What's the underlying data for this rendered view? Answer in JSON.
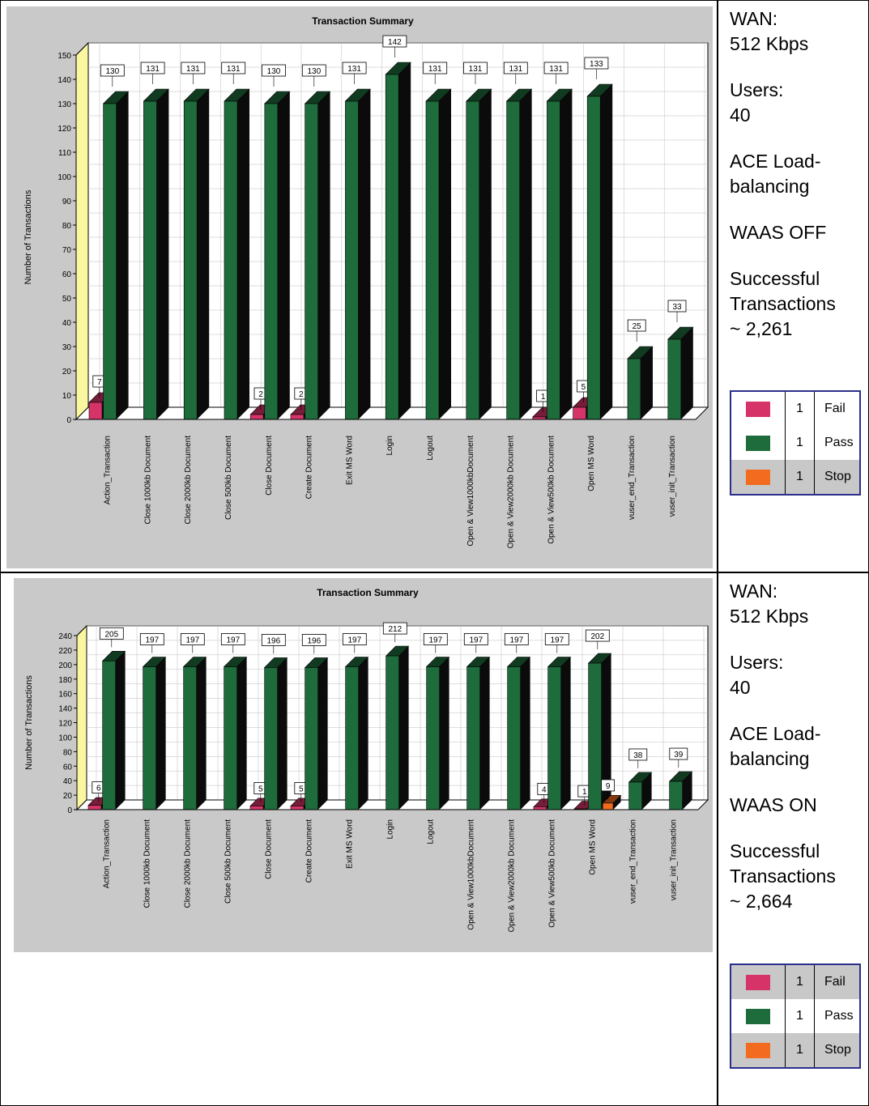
{
  "colors": {
    "fail": "#d63468",
    "pass": "#1e6b3c",
    "stop": "#f26b1f",
    "panel": "#c9c9c9",
    "side_wall": "#fbf7a0"
  },
  "chart_data": [
    {
      "type": "bar",
      "title": "Transaction Summary",
      "ylabel": "Number of Transactions",
      "ylim": [
        0,
        150
      ],
      "yticks": [
        0,
        10,
        20,
        30,
        40,
        50,
        60,
        70,
        80,
        90,
        100,
        110,
        120,
        130,
        140,
        150
      ],
      "categories": [
        "Action_Transaction",
        "Close 1000kb Document",
        "Close 2000kb Document",
        "Close 500kb Document",
        "Close Document",
        "Create Document",
        "Exit MS Word",
        "Login",
        "Logout",
        "Open & View1000kbDocument",
        "Open & View2000kb Document",
        "Open & View500kb Document",
        "Open MS Word",
        "vuser_end_Transaction",
        "vuser_init_Transaction"
      ],
      "series": [
        {
          "key": "fail",
          "values": [
            7,
            null,
            null,
            null,
            2,
            2,
            null,
            null,
            null,
            null,
            null,
            1,
            5,
            null,
            null
          ]
        },
        {
          "key": "pass",
          "values": [
            130,
            131,
            131,
            131,
            130,
            130,
            131,
            142,
            131,
            131,
            131,
            131,
            133,
            25,
            33
          ]
        },
        {
          "key": "stop",
          "values": [
            null,
            null,
            null,
            null,
            null,
            null,
            null,
            null,
            null,
            null,
            null,
            null,
            null,
            null,
            null
          ]
        }
      ]
    },
    {
      "type": "bar",
      "title": "Transaction Summary",
      "ylabel": "Number of Transactions",
      "ylim": [
        0,
        240
      ],
      "yticks": [
        0,
        20,
        40,
        60,
        80,
        100,
        120,
        140,
        160,
        180,
        200,
        220,
        240
      ],
      "categories": [
        "Action_Transaction",
        "Close 1000kb Document",
        "Close 2000kb Document",
        "Close 500kb Document",
        "Close Document",
        "Create Document",
        "Exit MS Word",
        "Login",
        "Logout",
        "Open & View1000kbDocument",
        "Open & View2000kb Document",
        "Open & View500kb Document",
        "Open MS Word",
        "vuser_end_Transaction",
        "vuser_init_Transaction"
      ],
      "series": [
        {
          "key": "fail",
          "values": [
            6,
            null,
            null,
            null,
            5,
            5,
            null,
            null,
            null,
            null,
            null,
            4,
            1,
            null,
            null
          ]
        },
        {
          "key": "pass",
          "values": [
            205,
            197,
            197,
            197,
            196,
            196,
            197,
            212,
            197,
            197,
            197,
            197,
            202,
            38,
            39
          ]
        },
        {
          "key": "stop",
          "values": [
            null,
            null,
            null,
            null,
            null,
            null,
            null,
            null,
            null,
            null,
            null,
            null,
            9,
            null,
            null
          ]
        }
      ]
    }
  ],
  "side_panels": [
    {
      "wan": "WAN:\n512 Kbps",
      "users": "Users:\n40",
      "ace": "ACE Load-\nbalancing",
      "waas": "WAAS OFF",
      "success": "Successful\nTransactions\n~ 2,261"
    },
    {
      "wan": "WAN:\n512 Kbps",
      "users": "Users:\n40",
      "ace": "ACE Load-\nbalancing",
      "waas": "WAAS ON",
      "success": "Successful\nTransactions\n~ 2,664"
    }
  ],
  "legend": [
    {
      "key": "fail",
      "count": "1",
      "label": "Fail"
    },
    {
      "key": "pass",
      "count": "1",
      "label": "Pass"
    },
    {
      "key": "stop",
      "count": "1",
      "label": "Stop"
    }
  ]
}
